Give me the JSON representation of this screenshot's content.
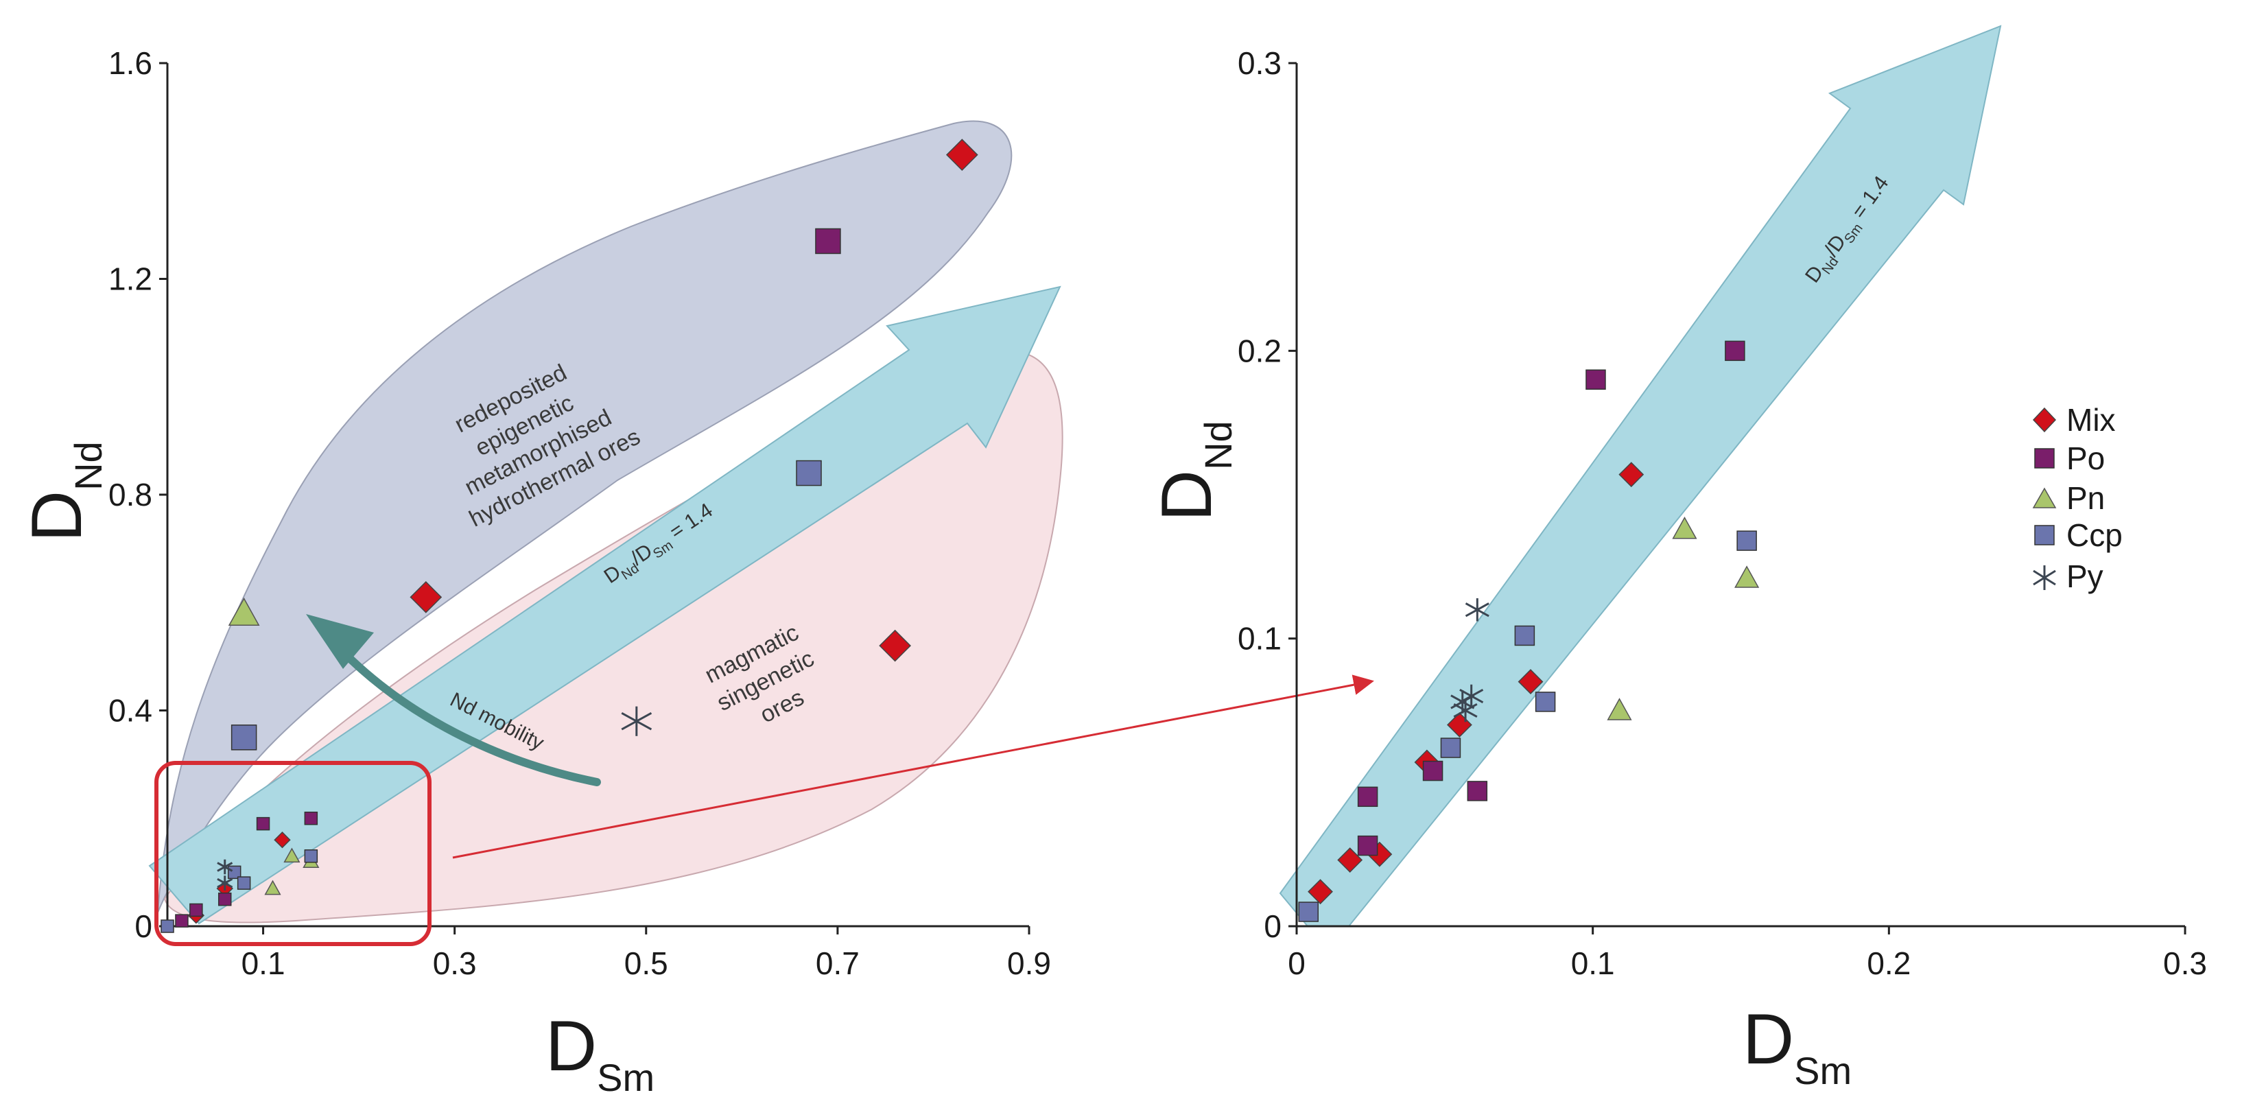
{
  "colors": {
    "mix": "#d0101a",
    "po": "#7a1e6a",
    "pn": "#a9c56b",
    "ccp": "#6b75ad",
    "py": "#3c4652",
    "upper_region": "#c9cfe0",
    "lower_region": "#f6dfe3",
    "trend_arrow": "#acd9e3",
    "mobility_arrow": "#4e8a86",
    "zoom_box": "#d62c34"
  },
  "annotations": {
    "upper_region_lines": [
      "redeposited",
      "epigenetic",
      "metamorphised",
      "hydrothermal ores"
    ],
    "lower_region_lines": [
      "magmatic",
      "singenetic",
      "ores"
    ],
    "mobility_label": "Nd mobility",
    "trend_label": {
      "d1": "D",
      "s1": "Nd",
      "slash": "/D",
      "s2": "Sm",
      "rest": " = 1.4"
    }
  },
  "axes": {
    "x_main": "D",
    "x_sub": "Sm",
    "y_main": "D",
    "y_sub": "Nd"
  },
  "legend": [
    {
      "label": "Mix",
      "series": "mix"
    },
    {
      "label": "Po",
      "series": "po"
    },
    {
      "label": "Pn",
      "series": "pn"
    },
    {
      "label": "Ccp",
      "series": "ccp"
    },
    {
      "label": "Py",
      "series": "py"
    }
  ],
  "chart_data": [
    {
      "type": "scatter",
      "panel": "left",
      "title": "",
      "xlabel": "DSm",
      "ylabel": "DNd",
      "xlim": [
        0,
        0.9
      ],
      "ylim": [
        0,
        1.6
      ],
      "xticks": [
        0.1,
        0.3,
        0.5,
        0.7,
        0.9
      ],
      "xtick_labels": [
        "0.1",
        "0.3",
        "0.5",
        "0.7",
        "0.9"
      ],
      "yticks": [
        0,
        0.4,
        0.8,
        1.2,
        1.6
      ],
      "ytick_labels": [
        "0",
        "0.4",
        "0.8",
        "1.2",
        "1.6"
      ],
      "trend_ratio": 1.4,
      "series": [
        {
          "name": "Mix",
          "key": "mix",
          "points": [
            [
              0.83,
              1.43
            ],
            [
              0.27,
              0.61
            ],
            [
              0.76,
              0.52
            ],
            [
              0.12,
              0.16
            ],
            [
              0.06,
              0.07
            ],
            [
              0.03,
              0.02
            ]
          ]
        },
        {
          "name": "Po",
          "key": "po",
          "points": [
            [
              0.69,
              1.27
            ],
            [
              0.1,
              0.19
            ],
            [
              0.15,
              0.2
            ],
            [
              0.06,
              0.05
            ],
            [
              0.03,
              0.03
            ],
            [
              0.015,
              0.01
            ]
          ]
        },
        {
          "name": "Pn",
          "key": "pn",
          "points": [
            [
              0.08,
              0.58
            ],
            [
              0.13,
              0.13
            ],
            [
              0.15,
              0.12
            ],
            [
              0.11,
              0.07
            ]
          ]
        },
        {
          "name": "Ccp",
          "key": "ccp",
          "points": [
            [
              0.67,
              0.84
            ],
            [
              0.08,
              0.35
            ],
            [
              0.15,
              0.13
            ],
            [
              0.07,
              0.1
            ],
            [
              0.08,
              0.08
            ],
            [
              0.0,
              0.0
            ]
          ]
        },
        {
          "name": "Py",
          "key": "py",
          "points": [
            [
              0.49,
              0.38
            ],
            [
              0.06,
              0.11
            ],
            [
              0.06,
              0.08
            ]
          ]
        }
      ]
    },
    {
      "type": "scatter",
      "panel": "right",
      "title": "",
      "xlabel": "DSm",
      "ylabel": "DNd",
      "xlim": [
        0,
        0.3
      ],
      "ylim": [
        0,
        0.3
      ],
      "xticks": [
        0,
        0.1,
        0.2,
        0.3
      ],
      "xtick_labels": [
        "0",
        "0.1",
        "0.2",
        "0.3"
      ],
      "yticks": [
        0,
        0.1,
        0.2,
        0.3
      ],
      "ytick_labels": [
        "0",
        "0.1",
        "0.2",
        "0.3"
      ],
      "trend_ratio": 1.4,
      "series": [
        {
          "name": "Mix",
          "key": "mix",
          "points": [
            [
              0.008,
              0.012
            ],
            [
              0.018,
              0.023
            ],
            [
              0.028,
              0.025
            ],
            [
              0.044,
              0.057
            ],
            [
              0.055,
              0.07
            ],
            [
              0.079,
              0.085
            ],
            [
              0.113,
              0.157
            ]
          ]
        },
        {
          "name": "Po",
          "key": "po",
          "points": [
            [
              0.024,
              0.045
            ],
            [
              0.024,
              0.028
            ],
            [
              0.046,
              0.054
            ],
            [
              0.061,
              0.047
            ],
            [
              0.101,
              0.19
            ],
            [
              0.148,
              0.2
            ]
          ]
        },
        {
          "name": "Pn",
          "key": "pn",
          "points": [
            [
              0.109,
              0.075
            ],
            [
              0.131,
              0.138
            ],
            [
              0.152,
              0.121
            ]
          ]
        },
        {
          "name": "Ccp",
          "key": "ccp",
          "points": [
            [
              0.004,
              0.005
            ],
            [
              0.052,
              0.062
            ],
            [
              0.077,
              0.101
            ],
            [
              0.084,
              0.078
            ],
            [
              0.152,
              0.134
            ]
          ]
        },
        {
          "name": "Py",
          "key": "py",
          "points": [
            [
              0.061,
              0.11
            ],
            [
              0.056,
              0.078
            ],
            [
              0.059,
              0.08
            ],
            [
              0.057,
              0.075
            ]
          ]
        }
      ]
    }
  ]
}
